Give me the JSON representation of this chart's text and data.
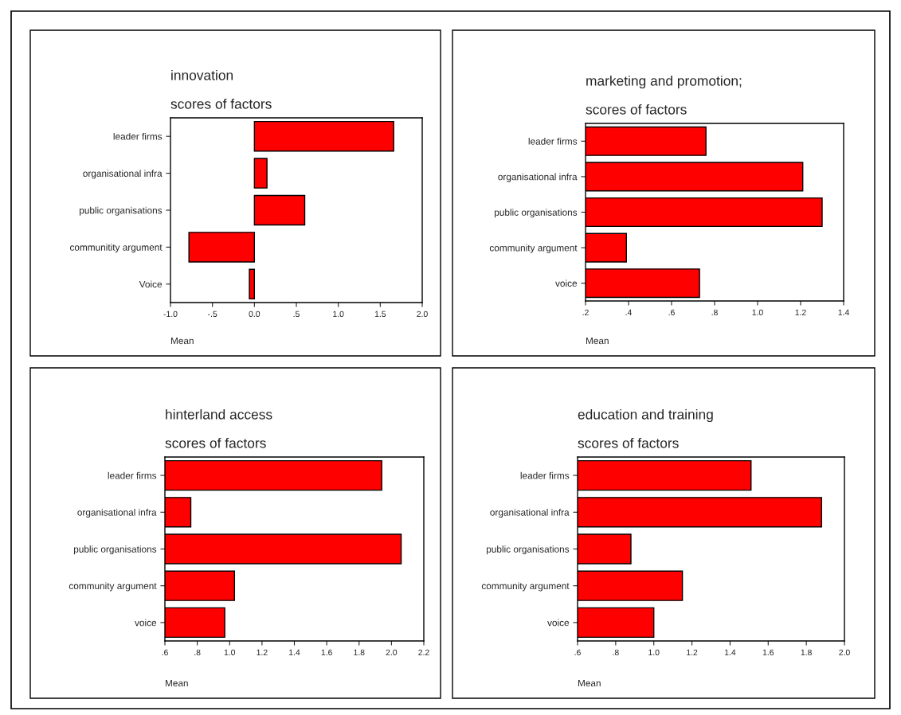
{
  "chart_data": [
    {
      "type": "bar",
      "orientation": "horizontal",
      "title": "innovation",
      "subtitle": "scores of factors",
      "xlabel": "Mean",
      "categories": [
        "leader firms",
        "organisational infra",
        "public organisations",
        "communitity argument",
        "Voice"
      ],
      "values": [
        1.66,
        0.15,
        0.6,
        -0.78,
        -0.06
      ],
      "color": "#ff0000",
      "xlim": [
        -1.0,
        2.0
      ],
      "xticks": [
        {
          "value": -1.0,
          "label": "-1.0"
        },
        {
          "value": -0.5,
          "label": "-.5"
        },
        {
          "value": 0.0,
          "label": "0.0"
        },
        {
          "value": 0.5,
          "label": ".5"
        },
        {
          "value": 1.0,
          "label": "1.0"
        },
        {
          "value": 1.5,
          "label": "1.5"
        },
        {
          "value": 2.0,
          "label": "2.0"
        }
      ],
      "grid": false,
      "legend": false
    },
    {
      "type": "bar",
      "orientation": "horizontal",
      "title": "marketing and promotion;",
      "subtitle": "scores of factors",
      "xlabel": "Mean",
      "categories": [
        "leader firms",
        "organisational infra",
        "public organisations",
        "community argument",
        "voice"
      ],
      "values": [
        0.76,
        1.21,
        1.3,
        0.39,
        0.73
      ],
      "color": "#ff0000",
      "xlim": [
        0.2,
        1.4
      ],
      "xticks": [
        {
          "value": 0.2,
          "label": ".2"
        },
        {
          "value": 0.4,
          "label": ".4"
        },
        {
          "value": 0.6,
          "label": ".6"
        },
        {
          "value": 0.8,
          "label": ".8"
        },
        {
          "value": 1.0,
          "label": "1.0"
        },
        {
          "value": 1.2,
          "label": "1.2"
        },
        {
          "value": 1.4,
          "label": "1.4"
        }
      ],
      "grid": false,
      "legend": false
    },
    {
      "type": "bar",
      "orientation": "horizontal",
      "title": "hinterland access",
      "subtitle": "scores of factors",
      "xlabel": "Mean",
      "categories": [
        "leader firms",
        "organisational infra",
        "public organisations",
        "community argument",
        "voice"
      ],
      "values": [
        1.94,
        0.76,
        2.06,
        1.03,
        0.97
      ],
      "color": "#ff0000",
      "xlim": [
        0.6,
        2.2
      ],
      "xticks": [
        {
          "value": 0.6,
          "label": ".6"
        },
        {
          "value": 0.8,
          "label": ".8"
        },
        {
          "value": 1.0,
          "label": "1.0"
        },
        {
          "value": 1.2,
          "label": "1.2"
        },
        {
          "value": 1.4,
          "label": "1.4"
        },
        {
          "value": 1.6,
          "label": "1.6"
        },
        {
          "value": 1.8,
          "label": "1.8"
        },
        {
          "value": 2.0,
          "label": "2.0"
        },
        {
          "value": 2.2,
          "label": "2.2"
        }
      ],
      "grid": false,
      "legend": false
    },
    {
      "type": "bar",
      "orientation": "horizontal",
      "title": "education and training",
      "subtitle": "scores of factors",
      "xlabel": "Mean",
      "categories": [
        "leader firms",
        "organisational infra",
        "public organisations",
        "community argument",
        "voice"
      ],
      "values": [
        1.51,
        1.88,
        0.88,
        1.15,
        1.0
      ],
      "color": "#ff0000",
      "xlim": [
        0.6,
        2.0
      ],
      "xticks": [
        {
          "value": 0.6,
          "label": ".6"
        },
        {
          "value": 0.8,
          "label": ".8"
        },
        {
          "value": 1.0,
          "label": "1.0"
        },
        {
          "value": 1.2,
          "label": "1.2"
        },
        {
          "value": 1.4,
          "label": "1.4"
        },
        {
          "value": 1.6,
          "label": "1.6"
        },
        {
          "value": 1.8,
          "label": "1.8"
        },
        {
          "value": 2.0,
          "label": "2.0"
        }
      ],
      "grid": false,
      "legend": false
    }
  ]
}
